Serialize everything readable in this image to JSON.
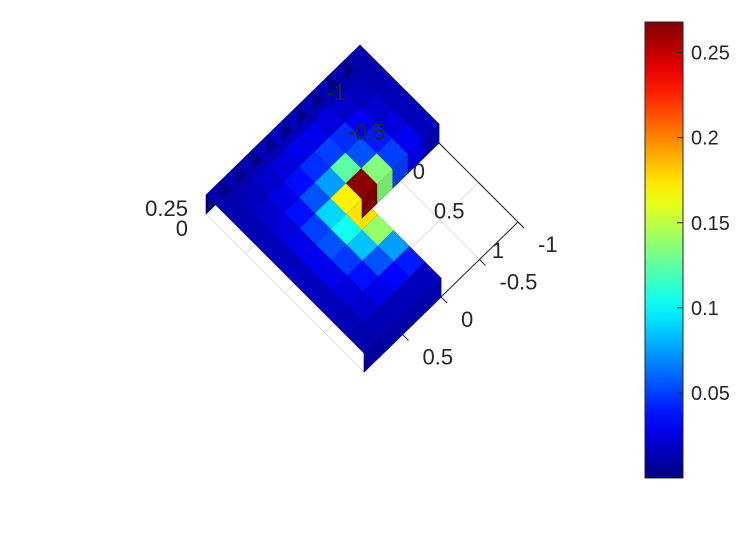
{
  "chart_data": {
    "type": "surface3d",
    "title": "",
    "xlabel": "",
    "ylabel": "",
    "zlabel": "",
    "description_of_shape": "L-shaped domain, piecewise-constant values on a 10x10 cell grid over [-1,1]x[-1,1] with the quadrant x>0, y<0 removed; extruded as blocks",
    "x_edges": [
      -1,
      -0.8,
      -0.6,
      -0.4,
      -0.2,
      0,
      0.2,
      0.4,
      0.6,
      0.8,
      1
    ],
    "y_edges": [
      -1,
      -0.8,
      -0.6,
      -0.4,
      -0.2,
      0,
      0.2,
      0.4,
      0.6,
      0.8,
      1
    ],
    "values_rows_by_y_from_top": [
      [
        0.012,
        0.013,
        0.014,
        0.015,
        0.016,
        0.017,
        0.016,
        0.015,
        0.014,
        0.012
      ],
      [
        0.013,
        0.016,
        0.02,
        0.024,
        0.028,
        0.03,
        0.028,
        0.024,
        0.02,
        0.014
      ],
      [
        0.014,
        0.02,
        0.027,
        0.037,
        0.05,
        0.055,
        0.048,
        0.037,
        0.027,
        0.015
      ],
      [
        0.015,
        0.024,
        0.036,
        0.055,
        0.09,
        0.105,
        0.085,
        0.055,
        0.034,
        0.016
      ],
      [
        0.016,
        0.028,
        0.045,
        0.075,
        0.17,
        0.175,
        0.14,
        0.075,
        0.04,
        0.016
      ],
      [
        0.016,
        0.028,
        0.05,
        0.125,
        0.265,
        null,
        null,
        null,
        null,
        null
      ],
      [
        0.015,
        0.025,
        0.045,
        0.055,
        0.135,
        null,
        null,
        null,
        null,
        null
      ],
      [
        0.014,
        0.02,
        0.03,
        0.04,
        0.05,
        null,
        null,
        null,
        null,
        null
      ],
      [
        0.013,
        0.016,
        0.02,
        0.025,
        0.03,
        null,
        null,
        null,
        null,
        null
      ],
      [
        0.012,
        0.013,
        0.014,
        0.015,
        0.016,
        null,
        null,
        null,
        null,
        null
      ]
    ],
    "x_axis": {
      "ticks": [
        -1,
        -0.5,
        0,
        0.5,
        1
      ],
      "labels": [
        "-1",
        "-0.5",
        "0",
        "0.5",
        "1"
      ]
    },
    "y_axis": {
      "ticks": [
        -1,
        -0.5,
        0,
        0.5
      ],
      "labels": [
        "-1",
        "-0.5",
        "0",
        "0.5"
      ]
    },
    "z_axis": {
      "ticks": [
        0,
        0.25
      ],
      "labels": [
        "0",
        "0.25"
      ],
      "range": [
        0,
        0.27
      ]
    },
    "colorbar": {
      "colormap": "jet",
      "range": [
        0,
        0.268
      ],
      "ticks": [
        0.05,
        0.1,
        0.15,
        0.2,
        0.25
      ],
      "labels": [
        "0.05",
        "0.1",
        "0.15",
        "0.2",
        "0.25"
      ]
    },
    "grid": true
  }
}
